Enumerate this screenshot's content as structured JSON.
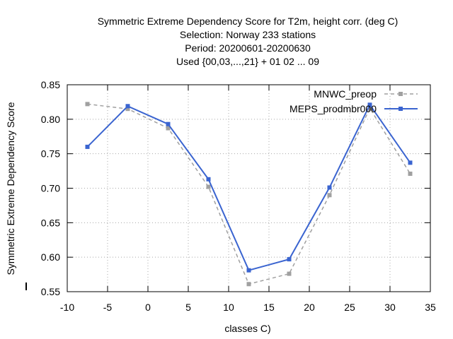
{
  "chart_data": {
    "type": "line",
    "title_lines": [
      "Symmetric Extreme Dependency Score  for T2m, height corr. (deg C)",
      "Selection: Norway    233 stations",
      "Period: 20200601-20200630",
      "Used {00,03,...,21} + 01 02 ... 09"
    ],
    "xlabel": "classes C)",
    "ylabel": "Symmetric Extreme Dependency Score",
    "xlim": [
      -10,
      35
    ],
    "ylim": [
      0.55,
      0.85
    ],
    "x_ticks": [
      -10,
      -5,
      0,
      5,
      10,
      15,
      20,
      25,
      30,
      35
    ],
    "y_ticks": [
      0.55,
      0.6,
      0.65,
      0.7,
      0.75,
      0.8,
      0.85
    ],
    "grid": true,
    "legend_position": "top-right",
    "x": [
      -7.5,
      -2.5,
      2.5,
      7.5,
      12.5,
      17.5,
      22.5,
      27.5,
      32.5
    ],
    "series": [
      {
        "name": "MNWC_preop",
        "color": "#a0a0a0",
        "dashed": true,
        "values": [
          0.822,
          0.815,
          0.787,
          0.702,
          0.561,
          0.576,
          0.69,
          0.816,
          0.721
        ]
      },
      {
        "name": "MEPS_prodmbr000",
        "color": "#3a64d0",
        "dashed": false,
        "values": [
          0.76,
          0.819,
          0.793,
          0.713,
          0.581,
          0.597,
          0.701,
          0.821,
          0.737
        ]
      }
    ]
  }
}
